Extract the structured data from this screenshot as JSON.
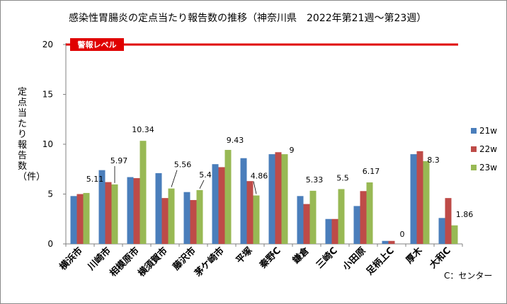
{
  "chart_data": {
    "type": "bar",
    "title": "感染性胃腸炎の定点当たり報告数の推移（神奈川県　2022年第21週～第23週）",
    "ylabel": "定点当たり報告数（件）",
    "xlabel": "",
    "ylim": [
      0,
      20
    ],
    "yticks": [
      0,
      5,
      10,
      15,
      20
    ],
    "grid": false,
    "legend_position": "right",
    "categories": [
      "横浜市",
      "川崎市",
      "相模原市",
      "横須賀市",
      "藤沢市",
      "茅ケ崎市",
      "平塚",
      "秦野C",
      "鎌倉",
      "三崎C",
      "小田原",
      "足柄上C",
      "厚木",
      "大和C"
    ],
    "series": [
      {
        "name": "21w",
        "color": "#4a7ebb",
        "values": [
          4.8,
          7.4,
          6.7,
          7.1,
          5.2,
          8.0,
          8.6,
          9.0,
          4.8,
          2.5,
          3.8,
          0.3,
          9.0,
          2.6
        ]
      },
      {
        "name": "22w",
        "color": "#be4b48",
        "values": [
          5.0,
          6.2,
          6.6,
          4.6,
          4.4,
          7.7,
          6.3,
          9.2,
          4.0,
          2.5,
          5.3,
          0.3,
          9.3,
          4.6
        ]
      },
      {
        "name": "23w",
        "color": "#98b954",
        "values": [
          5.11,
          5.97,
          10.34,
          5.56,
          5.4,
          9.43,
          4.86,
          9.0,
          5.33,
          5.5,
          6.17,
          0,
          8.3,
          1.86
        ]
      }
    ],
    "data_labels": [
      "5.11",
      "5.97",
      "10.34",
      "5.56",
      "5.4",
      "9.43",
      "4.86",
      "9",
      "5.33",
      "5.5",
      "6.17",
      "0",
      "8.3",
      "1.86"
    ],
    "warning_level": {
      "value": 20,
      "label": "警報レベル",
      "color": "#e00000"
    }
  },
  "note": "C：センター"
}
